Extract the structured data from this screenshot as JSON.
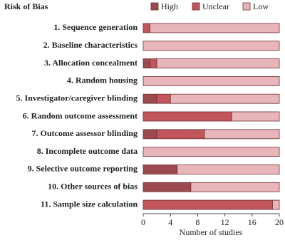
{
  "chart_data": {
    "type": "stacked-bar-horizontal",
    "title": "Risk of Bias",
    "categories": [
      "1. Sequence generation",
      "2. Baseline characteristics",
      "3. Allocation concealment",
      "4. Random housing",
      "5. Investigator/caregiver blinding",
      "6. Random outcome assessment",
      "7. Outcome assessor blinding",
      "8. Incomplete outcome data",
      "9. Selective outcome reporting",
      "10. Other sources of bias",
      "11. Sample size calculation"
    ],
    "series": [
      {
        "name": "High",
        "color": "#9c4a50",
        "values": [
          0,
          0,
          1,
          0,
          2,
          0,
          2,
          0,
          5,
          7,
          0
        ]
      },
      {
        "name": "Unclear",
        "color": "#c1565d",
        "values": [
          1,
          0,
          1,
          0,
          2,
          13,
          7,
          0,
          0,
          0,
          19
        ]
      },
      {
        "name": "Low",
        "color": "#e8b6ba",
        "values": [
          19,
          20,
          18,
          20,
          16,
          7,
          11,
          20,
          15,
          13,
          1
        ]
      }
    ],
    "xlabel": "Number of studies",
    "xlim": [
      0,
      20
    ],
    "xticks": [
      0,
      4,
      8,
      12,
      16,
      20
    ],
    "legend": "top"
  }
}
